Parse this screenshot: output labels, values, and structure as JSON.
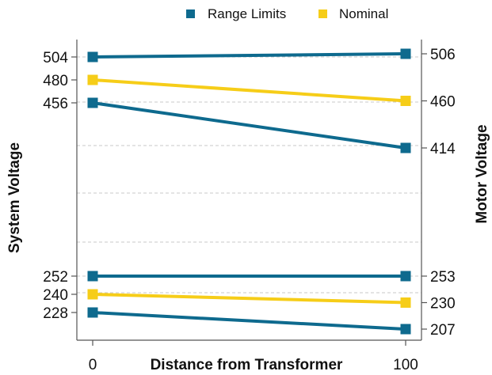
{
  "chart_data": {
    "type": "line",
    "title": "",
    "xlabel": "Distance from Transformer",
    "ylabel": "System Voltage",
    "y2label": "Motor Voltage",
    "x_ticks": [
      "0",
      "100"
    ],
    "legend": {
      "position": "top-right",
      "items": [
        {
          "label": "Range Limits",
          "color": "#0e6a8e"
        },
        {
          "label": "Nominal",
          "color": "#f6cd18"
        }
      ]
    },
    "left_ticks": [
      "504",
      "480",
      "456",
      "252",
      "240",
      "228"
    ],
    "right_ticks": [
      "506",
      "460",
      "414",
      "253",
      "230",
      "207"
    ],
    "series": [
      {
        "group": "Range Limits",
        "color": "#0e6a8e",
        "x": [
          0,
          100
        ],
        "y": [
          504,
          506
        ]
      },
      {
        "group": "Nominal",
        "color": "#f6cd18",
        "x": [
          0,
          100
        ],
        "y": [
          480,
          460
        ]
      },
      {
        "group": "Range Limits",
        "color": "#0e6a8e",
        "x": [
          0,
          100
        ],
        "y": [
          456,
          414
        ]
      },
      {
        "group": "Range Limits",
        "color": "#0e6a8e",
        "x": [
          0,
          100
        ],
        "y": [
          252,
          253
        ]
      },
      {
        "group": "Nominal",
        "color": "#f6cd18",
        "x": [
          0,
          100
        ],
        "y": [
          240,
          230
        ]
      },
      {
        "group": "Range Limits",
        "color": "#0e6a8e",
        "x": [
          0,
          100
        ],
        "y": [
          228,
          207
        ]
      }
    ],
    "grid": "horizontal dashed"
  }
}
